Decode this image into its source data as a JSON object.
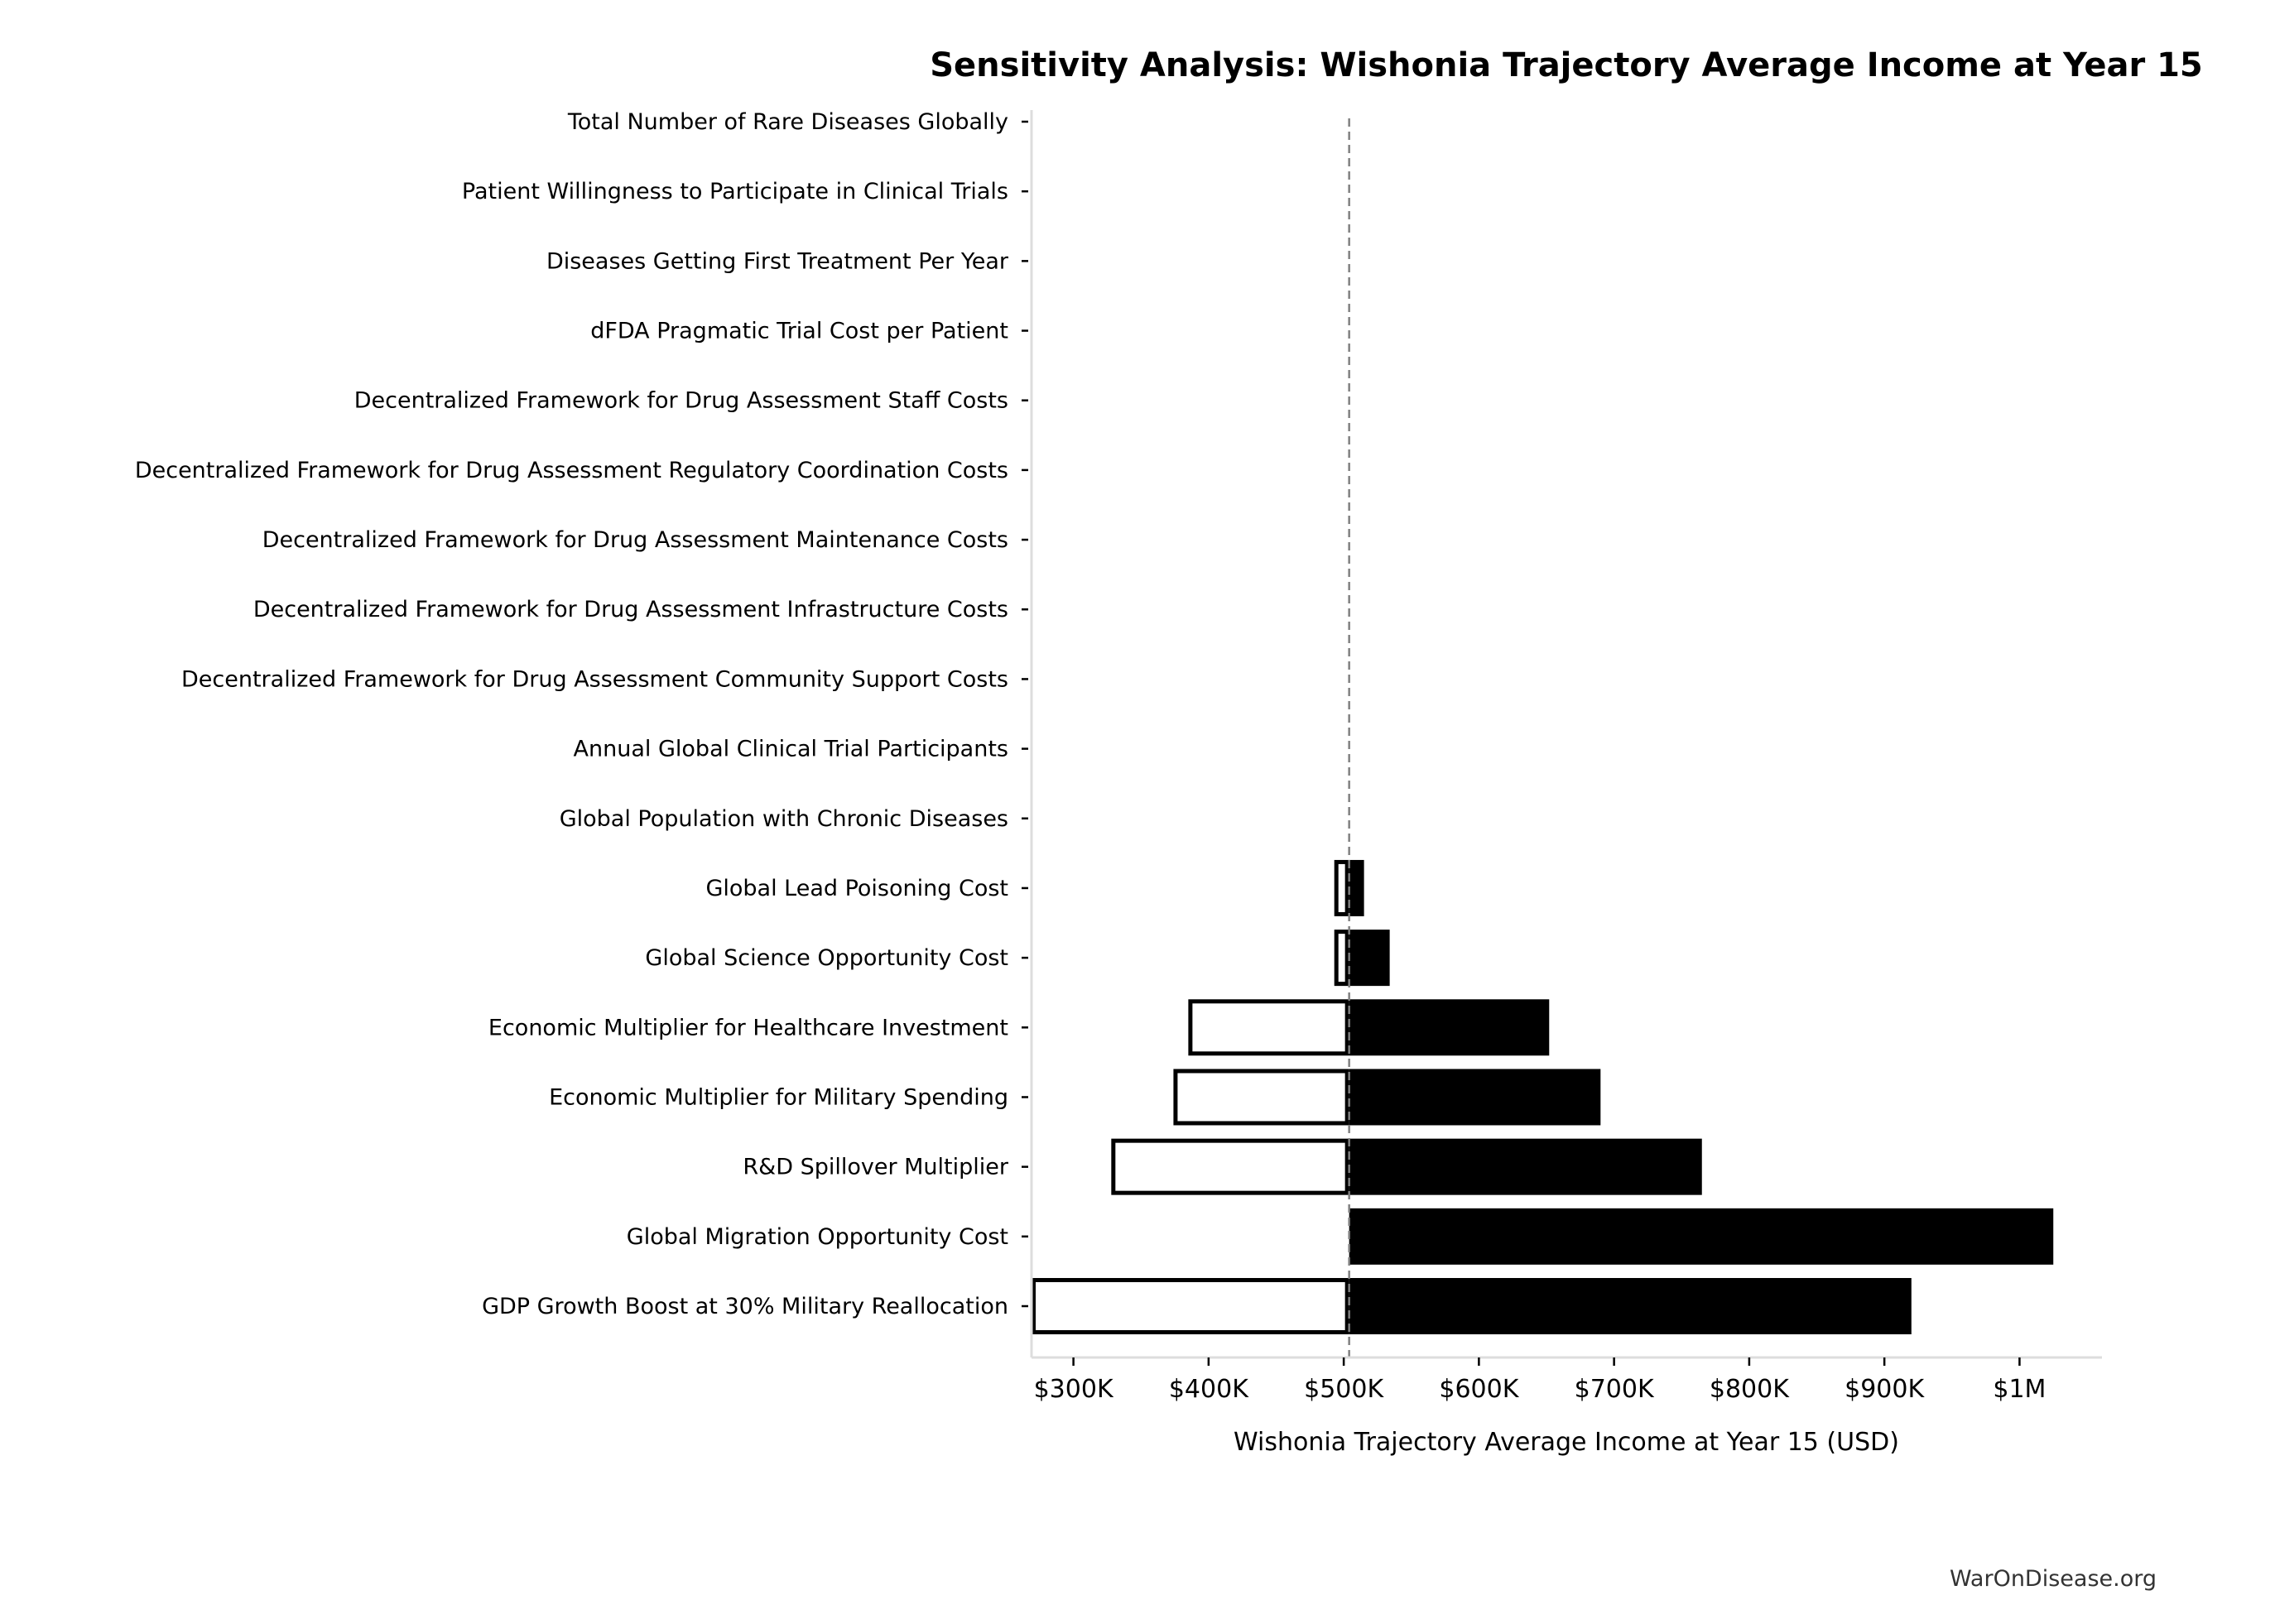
{
  "chart_data": {
    "type": "bar",
    "orientation": "horizontal",
    "chart_style": "tornado",
    "title": "Sensitivity Analysis: Wishonia Trajectory Average Income at Year 15",
    "xlabel": "Wishonia Trajectory Average Income at Year 15 (USD)",
    "ylabel": "",
    "xlim": [
      269000,
      1061000
    ],
    "baseline": 504000,
    "xticks": [
      300000,
      400000,
      500000,
      600000,
      700000,
      800000,
      900000,
      1000000
    ],
    "xtick_labels": [
      "$300K",
      "$400K",
      "$500K",
      "$600K",
      "$700K",
      "$800K",
      "$900K",
      "$1M"
    ],
    "grid": false,
    "colors": {
      "low_fill": "#ffffff",
      "high_fill": "#000000",
      "edge": "#000000",
      "baseline": "#808080"
    },
    "categories": [
      "Total Number of Rare Diseases Globally",
      "Patient Willingness to Participate in Clinical Trials",
      "Diseases Getting First Treatment Per Year",
      "dFDA Pragmatic Trial Cost per Patient",
      "Decentralized Framework for Drug Assessment Staff Costs",
      "Decentralized Framework for Drug Assessment Regulatory Coordination Costs",
      "Decentralized Framework for Drug Assessment Maintenance Costs",
      "Decentralized Framework for Drug Assessment Infrastructure Costs",
      "Decentralized Framework for Drug Assessment Community Support Costs",
      "Annual Global Clinical Trial Participants",
      "Global Population with Chronic Diseases",
      "Global Lead Poisoning Cost",
      "Global Science Opportunity Cost",
      "Economic Multiplier for Healthcare Investment",
      "Economic Multiplier for Military Spending",
      "R&D Spillover Multiplier",
      "Global Migration Opportunity Cost",
      "GDP Growth Boost at 30% Military Reallocation"
    ],
    "series": [
      {
        "values_low": [
          504000,
          504000,
          504000,
          504000,
          504000,
          504000,
          504000,
          504000,
          504000,
          504000,
          504000,
          493000,
          493000,
          385000,
          374000,
          328000,
          504000,
          269000
        ],
        "values_high": [
          504000,
          504000,
          504000,
          504000,
          504000,
          504000,
          504000,
          504000,
          504000,
          504000,
          504000,
          515000,
          534000,
          652000,
          690000,
          765000,
          1025000,
          920000
        ]
      }
    ]
  },
  "footer": {
    "credit": "WarOnDisease.org"
  }
}
